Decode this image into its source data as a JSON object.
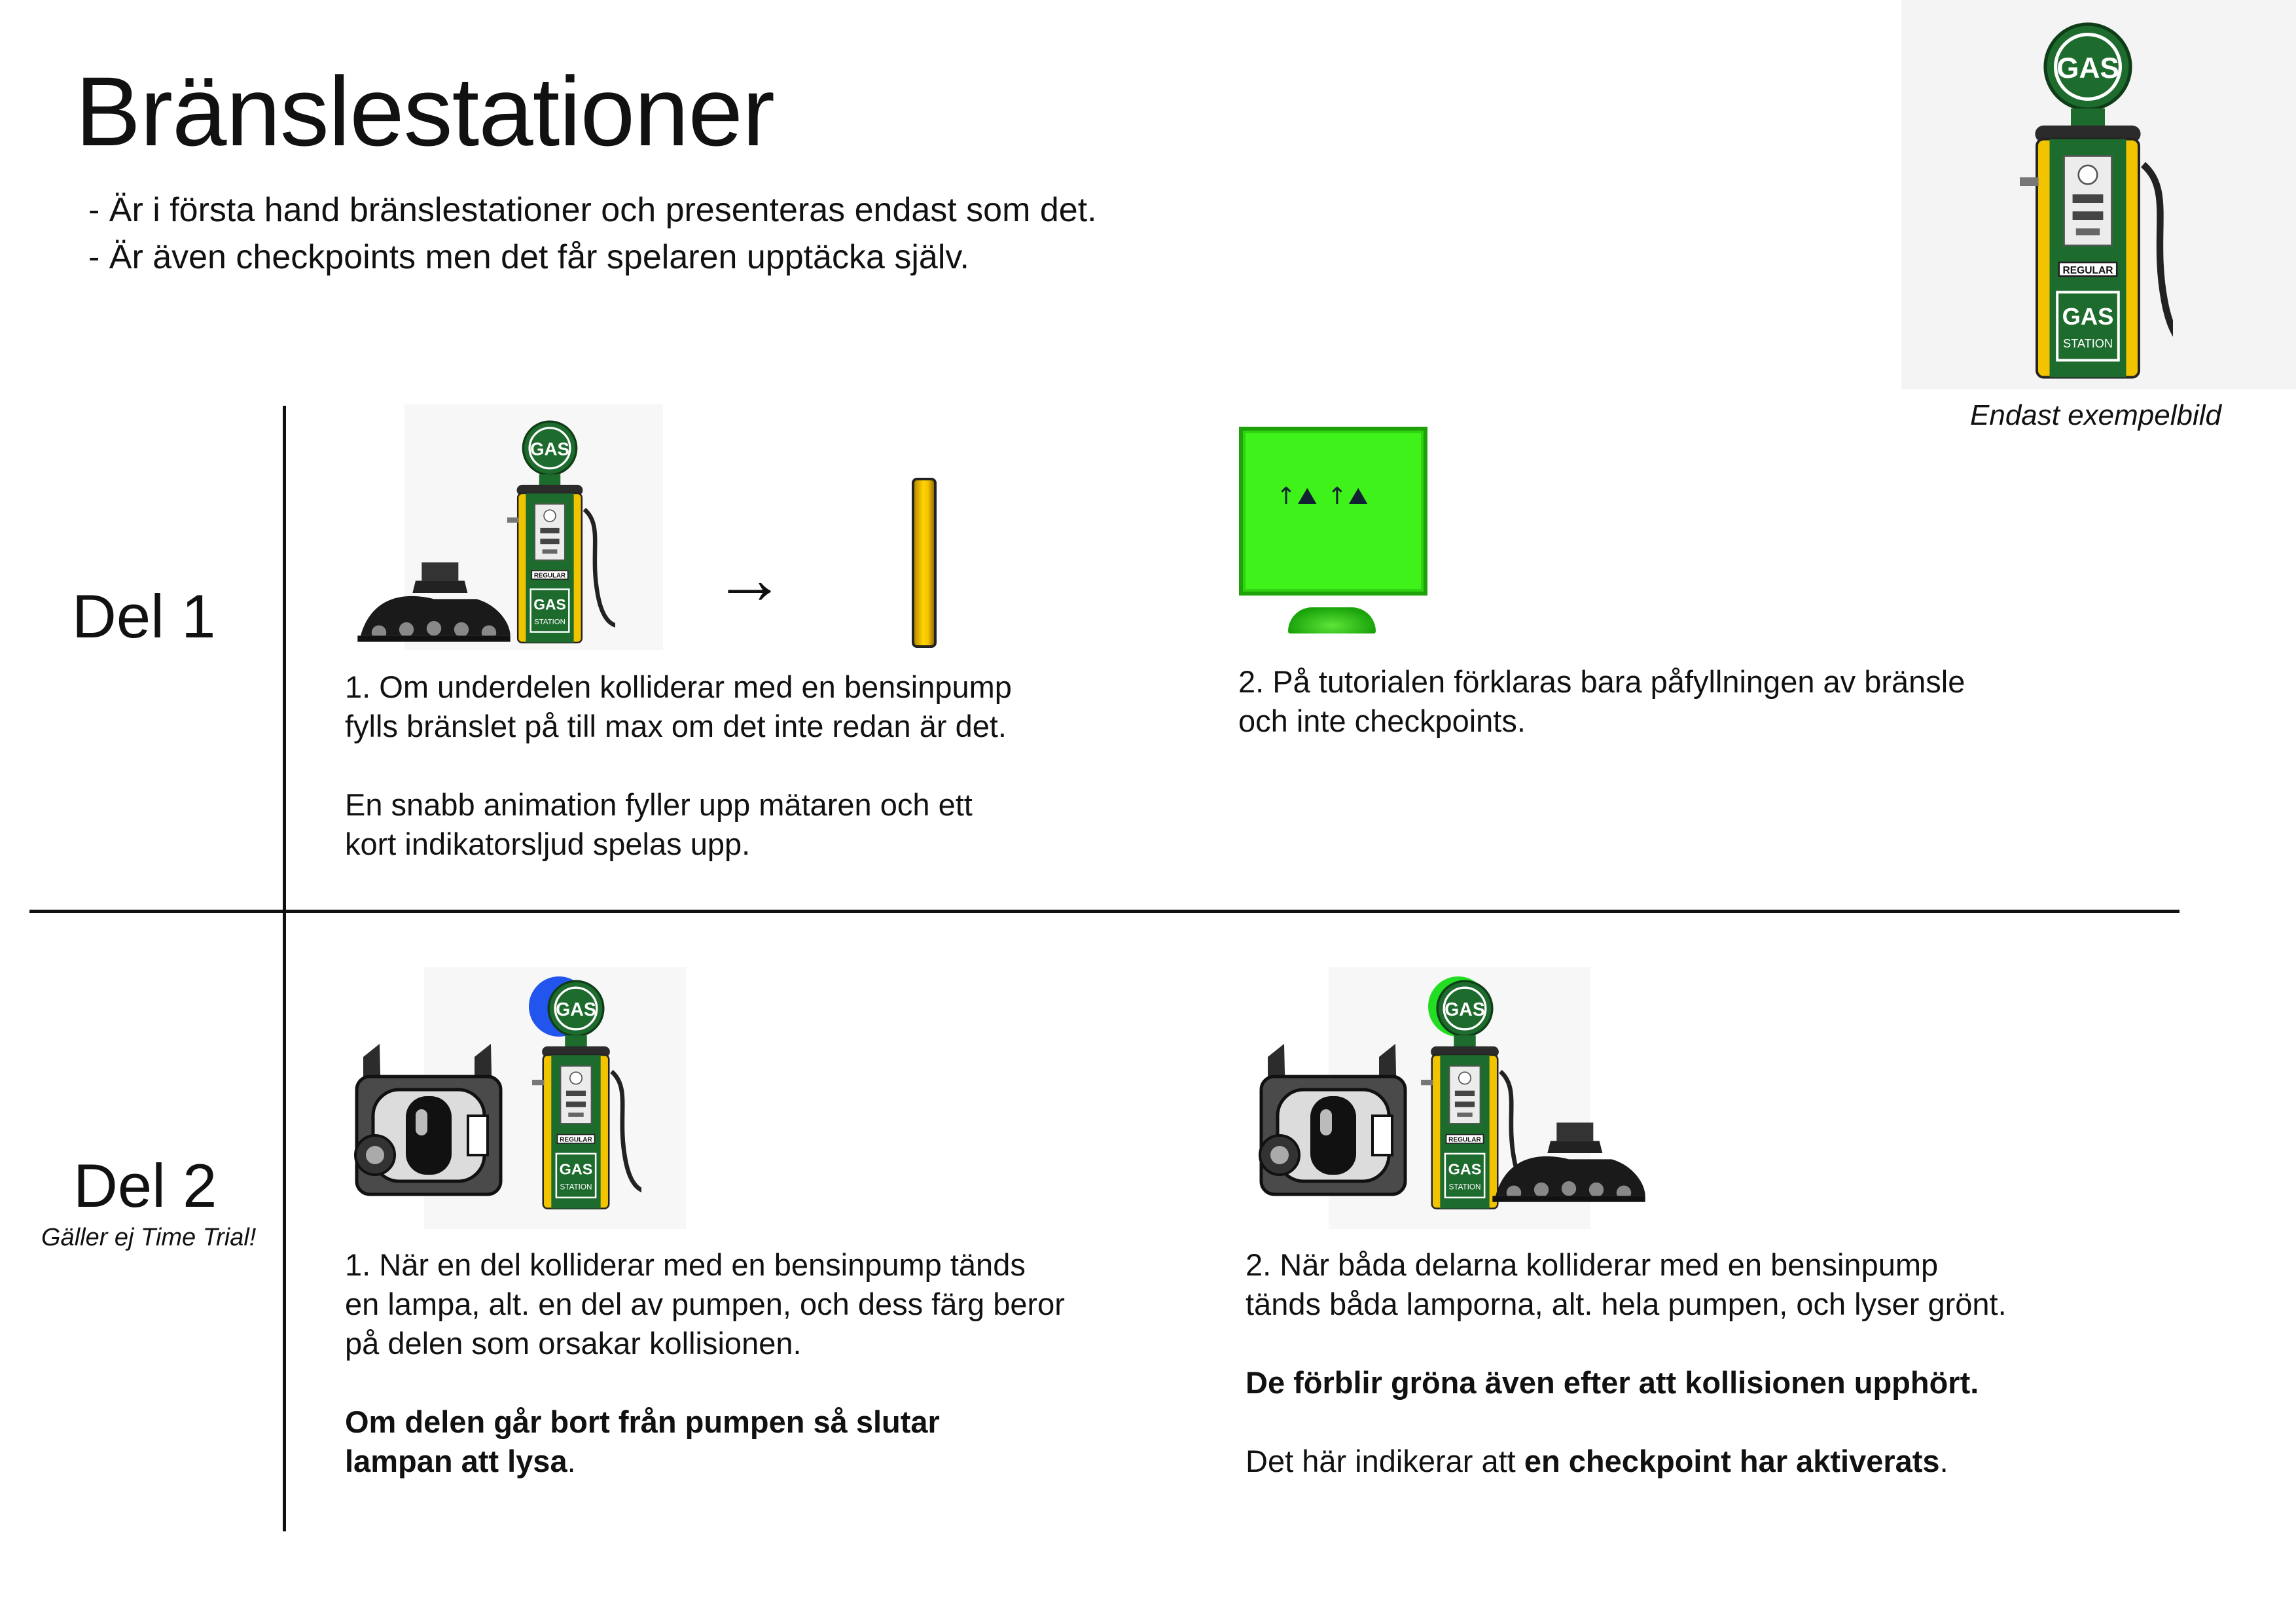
{
  "header": {
    "title": "Bränslestationer",
    "bullets": [
      "- Är i första hand bränslestationer och presenteras endast som det.",
      "- Är även checkpoints men det får spelaren upptäcka själv."
    ],
    "example_caption": "Endast exempelbild"
  },
  "pump": {
    "sign_text": "GAS",
    "regular_label": "REGULAR",
    "station_gas": "GAS",
    "station_label": "STATION"
  },
  "part1": {
    "label": "Del 1",
    "arrow": "→",
    "item1_lines": [
      "1. Om underdelen kolliderar med en bensinpump",
      "fylls bränslet på till max om det inte redan är det."
    ],
    "item1_extra_lines": [
      "En snabb animation fyller upp mätaren och ett",
      "kort indikatorsljud spelas upp."
    ],
    "item2_lines": [
      "2. På tutorialen förklaras bara påfyllningen av bränsle",
      "och inte checkpoints."
    ]
  },
  "part2": {
    "label": "Del 2",
    "sublabel": "Gäller ej Time Trial!",
    "item1_lines": [
      "1. När en del kolliderar med en bensinpump tänds",
      "en lampa, alt. en del av pumpen, och dess färg beror",
      "på delen som orsakar kollisionen."
    ],
    "item1_bold_lines": [
      "Om delen går bort från pumpen så slutar",
      "lampan att lysa"
    ],
    "item1_bold_suffix": ".",
    "item2_lines": [
      "2. När båda delarna kolliderar med en bensinpump",
      "tänds båda lamporna, alt. hela pumpen, och lyser grönt."
    ],
    "item2_bold": "De förblir gröna även efter att kollisionen upphört.",
    "item2_last_prefix": "Det här indikerar att ",
    "item2_last_bold": "en checkpoint har aktiverats",
    "item2_last_suffix": "."
  },
  "colors": {
    "pump_green": "#1e6b2e",
    "pump_yellow": "#f2c400",
    "lamp_blue": "#2255ee",
    "lamp_green": "#22dd22",
    "screen_green": "#3ff219"
  }
}
